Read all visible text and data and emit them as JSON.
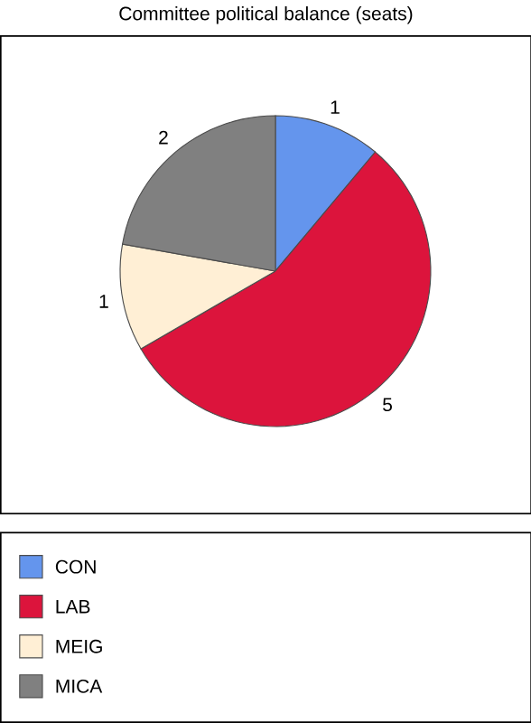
{
  "chart_data": {
    "type": "pie",
    "title": "Committee political balance (seats)",
    "categories": [
      "CON",
      "LAB",
      "MEIG",
      "MICA"
    ],
    "values": [
      1,
      5,
      1,
      2
    ],
    "colors": [
      "#6495ed",
      "#dc143c",
      "#ffefd5",
      "#808080"
    ],
    "data_labels": true,
    "legend": "bottom"
  }
}
